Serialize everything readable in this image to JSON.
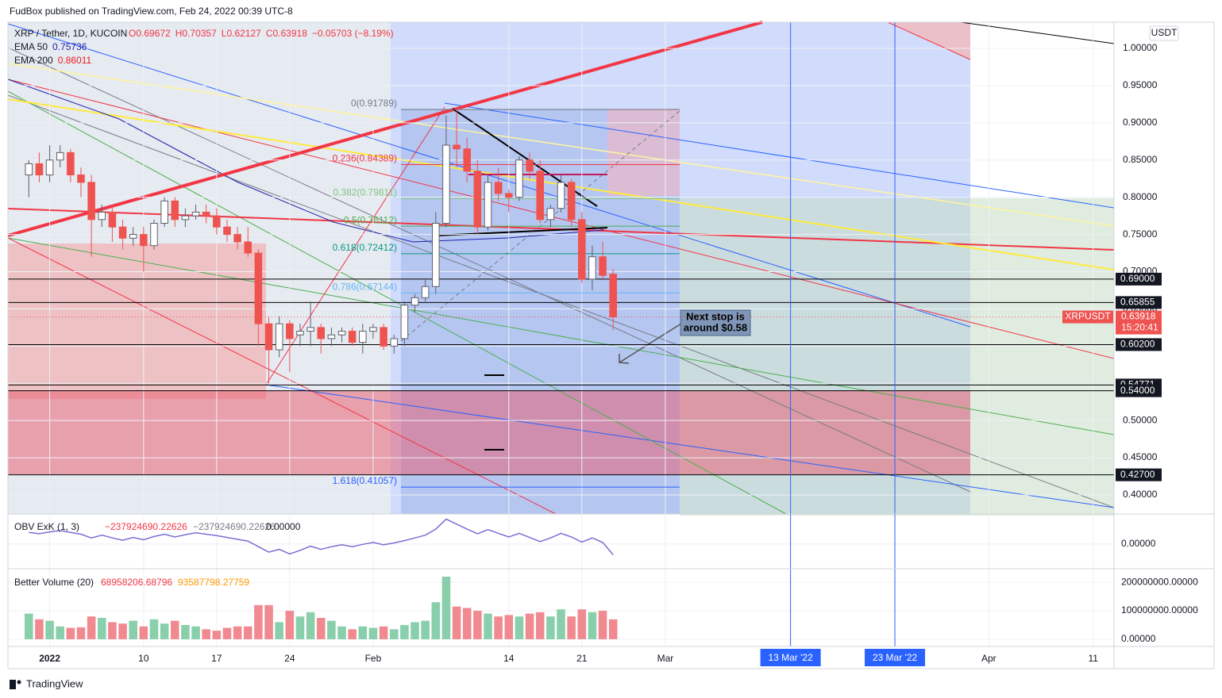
{
  "caption": "FudBox published on TradingView.com, Feb 24, 2022 00:39 UTC-8",
  "brand": "TradingView",
  "chart_data": {
    "type": "candlestick",
    "symbol": "XRP / Tether, 1D, KUCOIN",
    "ohlc_legend": [
      "O0.69672",
      "H0.70357",
      "L0.62127",
      "C0.63918",
      "−0.05703 (−8.19%)"
    ],
    "ema": [
      {
        "name": "EMA 50",
        "value": "0.75736",
        "color": "#1e22aa"
      },
      {
        "name": "EMA 200",
        "value": "0.86011",
        "color": "#e91e1e"
      }
    ],
    "currency": "USDT",
    "x": [
      "2021-12-30",
      "2021-12-31",
      "2022-01-01",
      "2022-01-02",
      "2022-01-03",
      "2022-01-04",
      "2022-01-05",
      "2022-01-06",
      "2022-01-07",
      "2022-01-08",
      "2022-01-09",
      "2022-01-10",
      "2022-01-11",
      "2022-01-12",
      "2022-01-13",
      "2022-01-14",
      "2022-01-15",
      "2022-01-16",
      "2022-01-17",
      "2022-01-18",
      "2022-01-19",
      "2022-01-20",
      "2022-01-21",
      "2022-01-22",
      "2022-01-23",
      "2022-01-24",
      "2022-01-25",
      "2022-01-26",
      "2022-01-27",
      "2022-01-28",
      "2022-01-29",
      "2022-01-30",
      "2022-01-31",
      "2022-02-01",
      "2022-02-02",
      "2022-02-03",
      "2022-02-04",
      "2022-02-05",
      "2022-02-06",
      "2022-02-07",
      "2022-02-08",
      "2022-02-09",
      "2022-02-10",
      "2022-02-11",
      "2022-02-12",
      "2022-02-13",
      "2022-02-14",
      "2022-02-15",
      "2022-02-16",
      "2022-02-17",
      "2022-02-18",
      "2022-02-19",
      "2022-02-20",
      "2022-02-21",
      "2022-02-22",
      "2022-02-23",
      "2022-02-24"
    ],
    "open": [
      0.83,
      0.845,
      0.83,
      0.85,
      0.86,
      0.83,
      0.82,
      0.77,
      0.78,
      0.76,
      0.745,
      0.75,
      0.735,
      0.765,
      0.795,
      0.77,
      0.775,
      0.78,
      0.775,
      0.76,
      0.75,
      0.74,
      0.725,
      0.63,
      0.595,
      0.63,
      0.615,
      0.62,
      0.625,
      0.61,
      0.615,
      0.62,
      0.605,
      0.62,
      0.625,
      0.6,
      0.61,
      0.655,
      0.665,
      0.68,
      0.765,
      0.87,
      0.865,
      0.835,
      0.76,
      0.82,
      0.805,
      0.8,
      0.85,
      0.835,
      0.77,
      0.785,
      0.82,
      0.77,
      0.69,
      0.72,
      0.69672
    ],
    "high": [
      0.85,
      0.86,
      0.87,
      0.87,
      0.865,
      0.84,
      0.83,
      0.79,
      0.79,
      0.77,
      0.76,
      0.76,
      0.77,
      0.8,
      0.8,
      0.785,
      0.79,
      0.79,
      0.785,
      0.77,
      0.76,
      0.76,
      0.73,
      0.64,
      0.64,
      0.635,
      0.63,
      0.66,
      0.63,
      0.625,
      0.625,
      0.625,
      0.63,
      0.63,
      0.63,
      0.615,
      0.66,
      0.67,
      0.69,
      0.78,
      0.91,
      0.92,
      0.88,
      0.85,
      0.83,
      0.84,
      0.81,
      0.855,
      0.86,
      0.85,
      0.79,
      0.83,
      0.825,
      0.78,
      0.735,
      0.74,
      0.70357
    ],
    "low": [
      0.8,
      0.82,
      0.82,
      0.84,
      0.82,
      0.8,
      0.72,
      0.76,
      0.74,
      0.73,
      0.735,
      0.7,
      0.73,
      0.76,
      0.76,
      0.76,
      0.77,
      0.765,
      0.75,
      0.74,
      0.73,
      0.72,
      0.6,
      0.55,
      0.585,
      0.565,
      0.6,
      0.6,
      0.59,
      0.6,
      0.605,
      0.6,
      0.59,
      0.61,
      0.595,
      0.59,
      0.6,
      0.645,
      0.66,
      0.67,
      0.76,
      0.84,
      0.82,
      0.75,
      0.755,
      0.795,
      0.78,
      0.795,
      0.825,
      0.765,
      0.76,
      0.78,
      0.76,
      0.685,
      0.675,
      0.69,
      0.62127
    ],
    "close": [
      0.845,
      0.83,
      0.85,
      0.86,
      0.83,
      0.82,
      0.77,
      0.78,
      0.76,
      0.745,
      0.75,
      0.735,
      0.765,
      0.795,
      0.77,
      0.775,
      0.78,
      0.775,
      0.76,
      0.75,
      0.74,
      0.725,
      0.63,
      0.595,
      0.63,
      0.61,
      0.62,
      0.625,
      0.61,
      0.615,
      0.62,
      0.605,
      0.62,
      0.625,
      0.6,
      0.61,
      0.655,
      0.665,
      0.68,
      0.765,
      0.87,
      0.865,
      0.835,
      0.76,
      0.82,
      0.805,
      0.8,
      0.85,
      0.835,
      0.77,
      0.785,
      0.82,
      0.77,
      0.69,
      0.72,
      0.695,
      0.63918
    ],
    "up_color": "#ffffff",
    "down_color": "#ef5350",
    "xlim": [
      "2021-12-28",
      "2022-04-13"
    ],
    "ylim": [
      0.3744,
      1.0352
    ],
    "yticks": [
      {
        "value": 0.4,
        "label": "0.40000"
      },
      {
        "value": 0.45,
        "label": "0.45000"
      },
      {
        "value": 0.5,
        "label": "0.50000"
      },
      {
        "value": 0.55,
        "label": "0.55000"
      },
      {
        "value": 0.6,
        "label": "0.60000"
      },
      {
        "value": 0.65,
        "label": "0.65000"
      },
      {
        "value": 0.7,
        "label": "0.70000"
      },
      {
        "value": 0.75,
        "label": "0.75000"
      },
      {
        "value": 0.8,
        "label": "0.80000"
      },
      {
        "value": 0.85,
        "label": "0.85000"
      },
      {
        "value": 0.9,
        "label": "0.90000"
      },
      {
        "value": 0.95,
        "label": "0.95000"
      },
      {
        "value": 1.0,
        "label": "1.00000"
      }
    ],
    "xticks": [
      {
        "value": "2022-01-01",
        "label": "2022"
      },
      {
        "value": "2022-01-10",
        "label": "10"
      },
      {
        "value": "2022-01-17",
        "label": "17"
      },
      {
        "value": "2022-01-24",
        "label": "24"
      },
      {
        "value": "2022-02-01",
        "label": "Feb"
      },
      {
        "value": "2022-02-14",
        "label": "14"
      },
      {
        "value": "2022-02-21",
        "label": "21"
      },
      {
        "value": "2022-03-01",
        "label": "Mar"
      },
      {
        "value": "2022-04-01",
        "label": "Apr"
      },
      {
        "value": "2022-04-11",
        "label": "11"
      }
    ],
    "grid": true,
    "markers": [
      {
        "value": "2022-03-13",
        "label": "13 Mar '22"
      },
      {
        "value": "2022-03-23",
        "label": "23 Mar '22"
      }
    ],
    "levels": [
      {
        "value": 0.69,
        "label": "0.69000"
      },
      {
        "value": 0.65855,
        "label": "0.65855"
      },
      {
        "value": 0.602,
        "label": "0.60200"
      },
      {
        "value": 0.54771,
        "label": "0.54771"
      },
      {
        "value": 0.54,
        "label": "0.54000"
      },
      {
        "value": 0.427,
        "label": "0.42700"
      }
    ],
    "last": {
      "name": "XRPUSDT",
      "value": 0.63918,
      "label": "0.63918",
      "countdown": "15:20:41"
    },
    "fib": [
      {
        "value": 0.91789,
        "label": "0(0.91789)",
        "color": "#787b86"
      },
      {
        "value": 0.84389,
        "label": "0.236(0.84389)",
        "color": "#f23645"
      },
      {
        "value": 0.79811,
        "label": "0.382(0.79811)",
        "color": "#81c784"
      },
      {
        "value": 0.76112,
        "label": "0.5(0.76112)",
        "color": "#4caf50"
      },
      {
        "value": 0.72412,
        "label": "0.618(0.72412)",
        "color": "#089981"
      },
      {
        "value": 0.67144,
        "label": "0.786(0.67144)",
        "color": "#64b5f6"
      },
      {
        "value": 0.41057,
        "label": "1.618(0.41057)",
        "color": "#2962ff"
      }
    ],
    "annotation": [
      "Next stop is",
      "around $0.58"
    ],
    "obv": {
      "name": "OBV ExK (1, 3)",
      "legend": [
        "−237924690.22626",
        "−237924690.22626",
        "0.00000"
      ],
      "color": "#7b6fd6",
      "values": [
        250000000,
        220000000,
        260000000,
        290000000,
        250000000,
        210000000,
        130000000,
        190000000,
        130000000,
        80000000,
        140000000,
        90000000,
        160000000,
        210000000,
        150000000,
        200000000,
        240000000,
        210000000,
        180000000,
        140000000,
        100000000,
        60000000,
        -60000000,
        -180000000,
        -120000000,
        -220000000,
        -140000000,
        -50000000,
        -120000000,
        -60000000,
        -20000000,
        -60000000,
        -10000000,
        30000000,
        -20000000,
        20000000,
        70000000,
        130000000,
        190000000,
        320000000,
        540000000,
        430000000,
        320000000,
        220000000,
        310000000,
        230000000,
        150000000,
        230000000,
        140000000,
        50000000,
        130000000,
        230000000,
        150000000,
        40000000,
        130000000,
        30000000,
        -237924690.22626
      ],
      "ylim": [
        -540000000,
        650000000
      ],
      "yticks": [
        {
          "value": 0,
          "label": "0.00000"
        }
      ]
    },
    "volume": {
      "name": "Better Volume (20)",
      "legend": [
        "68958206.68796",
        "93587798.27759"
      ],
      "up_color": "#89cfac",
      "down_color": "#f08a90",
      "values": [
        90000000,
        70000000,
        65000000,
        45000000,
        40000000,
        42000000,
        80000000,
        75000000,
        60000000,
        55000000,
        65000000,
        45000000,
        70000000,
        55000000,
        65000000,
        50000000,
        45000000,
        35000000,
        30000000,
        40000000,
        45000000,
        45000000,
        120000000,
        120000000,
        60000000,
        100000000,
        80000000,
        95000000,
        75000000,
        65000000,
        45000000,
        35000000,
        45000000,
        40000000,
        45000000,
        35000000,
        50000000,
        60000000,
        65000000,
        130000000,
        220000000,
        115000000,
        110000000,
        100000000,
        90000000,
        80000000,
        85000000,
        80000000,
        90000000,
        95000000,
        80000000,
        105000000,
        80000000,
        105000000,
        95000000,
        100000000,
        70000000
      ],
      "ylim": [
        -25350000,
        247900000
      ],
      "yticks": [
        {
          "value": 0,
          "label": "0.00000"
        },
        {
          "value": 100000000,
          "label": "100000000.00000"
        },
        {
          "value": 200000000,
          "label": "200000000.00000"
        }
      ]
    }
  }
}
